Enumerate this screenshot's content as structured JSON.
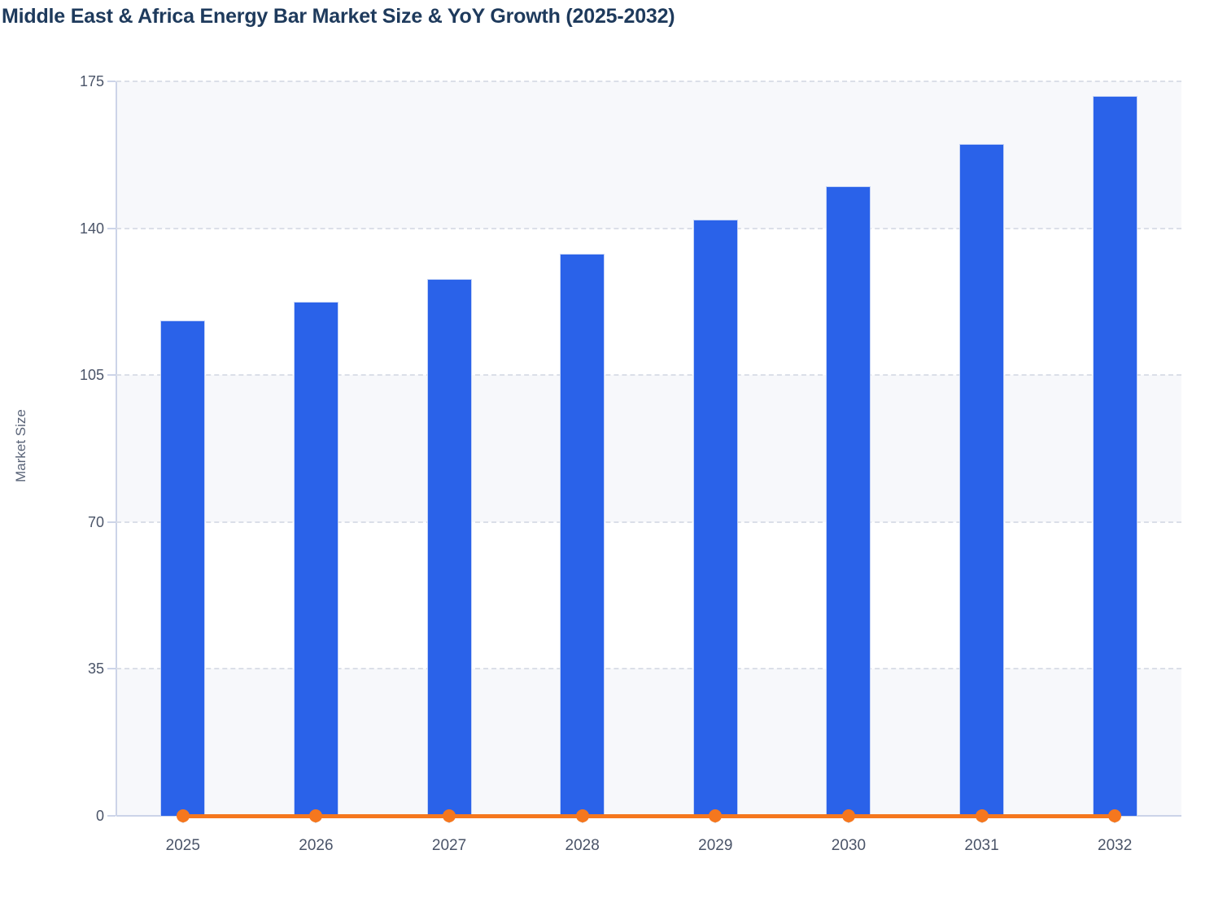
{
  "header": {
    "title": "Middle East & Africa Energy Bar Market Size & YoY Growth (2025-2032)"
  },
  "chart_data": {
    "type": "bar",
    "title": "Middle East & Africa Energy Bar Market Size & YoY Growth (2025-2032)",
    "categories": [
      "2025",
      "2026",
      "2027",
      "2028",
      "2029",
      "2030",
      "2031",
      "2032"
    ],
    "series": [
      {
        "name": "Market Size",
        "type": "bar",
        "values": [
          118,
          122.5,
          128,
          134,
          142,
          150,
          160,
          171.5
        ]
      },
      {
        "name": "YoY Growth",
        "type": "line",
        "values": [
          0,
          0,
          0,
          0,
          0,
          0,
          0,
          0
        ]
      }
    ],
    "xlabel": "",
    "ylabel": "Market Size",
    "ylim": [
      0,
      175
    ],
    "y_ticks": [
      0,
      35,
      70,
      105,
      140,
      175
    ],
    "legend_position": "none",
    "grid": "horizontal dashed gridlines with alternating shaded row bands"
  },
  "style": {
    "bar_color": "#2a62e9",
    "line_color": "#f5771e",
    "marker_color": "#f5771e",
    "band_color": "#f7f8fb",
    "grid_color": "#dbdfe8",
    "axis_color": "#ccd4e8",
    "title_color": "#1e3a5c",
    "tick_label_color": "#4a5468",
    "axis_title_color": "#5a6478"
  }
}
